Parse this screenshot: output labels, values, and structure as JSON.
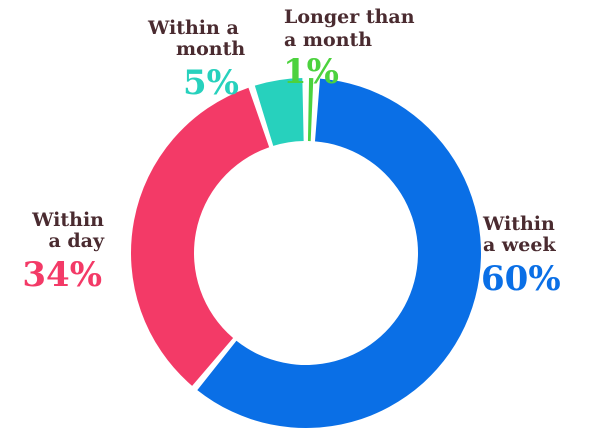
{
  "chart_data": {
    "type": "pie",
    "donut": true,
    "categories": [
      "Within a week",
      "Within a day",
      "Within a month",
      "Longer than a month"
    ],
    "values": [
      60,
      34,
      5,
      1
    ],
    "value_labels": [
      "60%",
      "34%",
      "5%",
      "1%"
    ],
    "label_lines": [
      [
        "Within",
        "a week"
      ],
      [
        "Within",
        "a day"
      ],
      [
        "Within a",
        "month"
      ],
      [
        "Longer than",
        "a month"
      ]
    ],
    "colors": [
      "#0a6fe6",
      "#f33a67",
      "#27d1bd",
      "#4cd23e"
    ],
    "label_color": "#4a2b30",
    "title": "",
    "legend": "none"
  }
}
